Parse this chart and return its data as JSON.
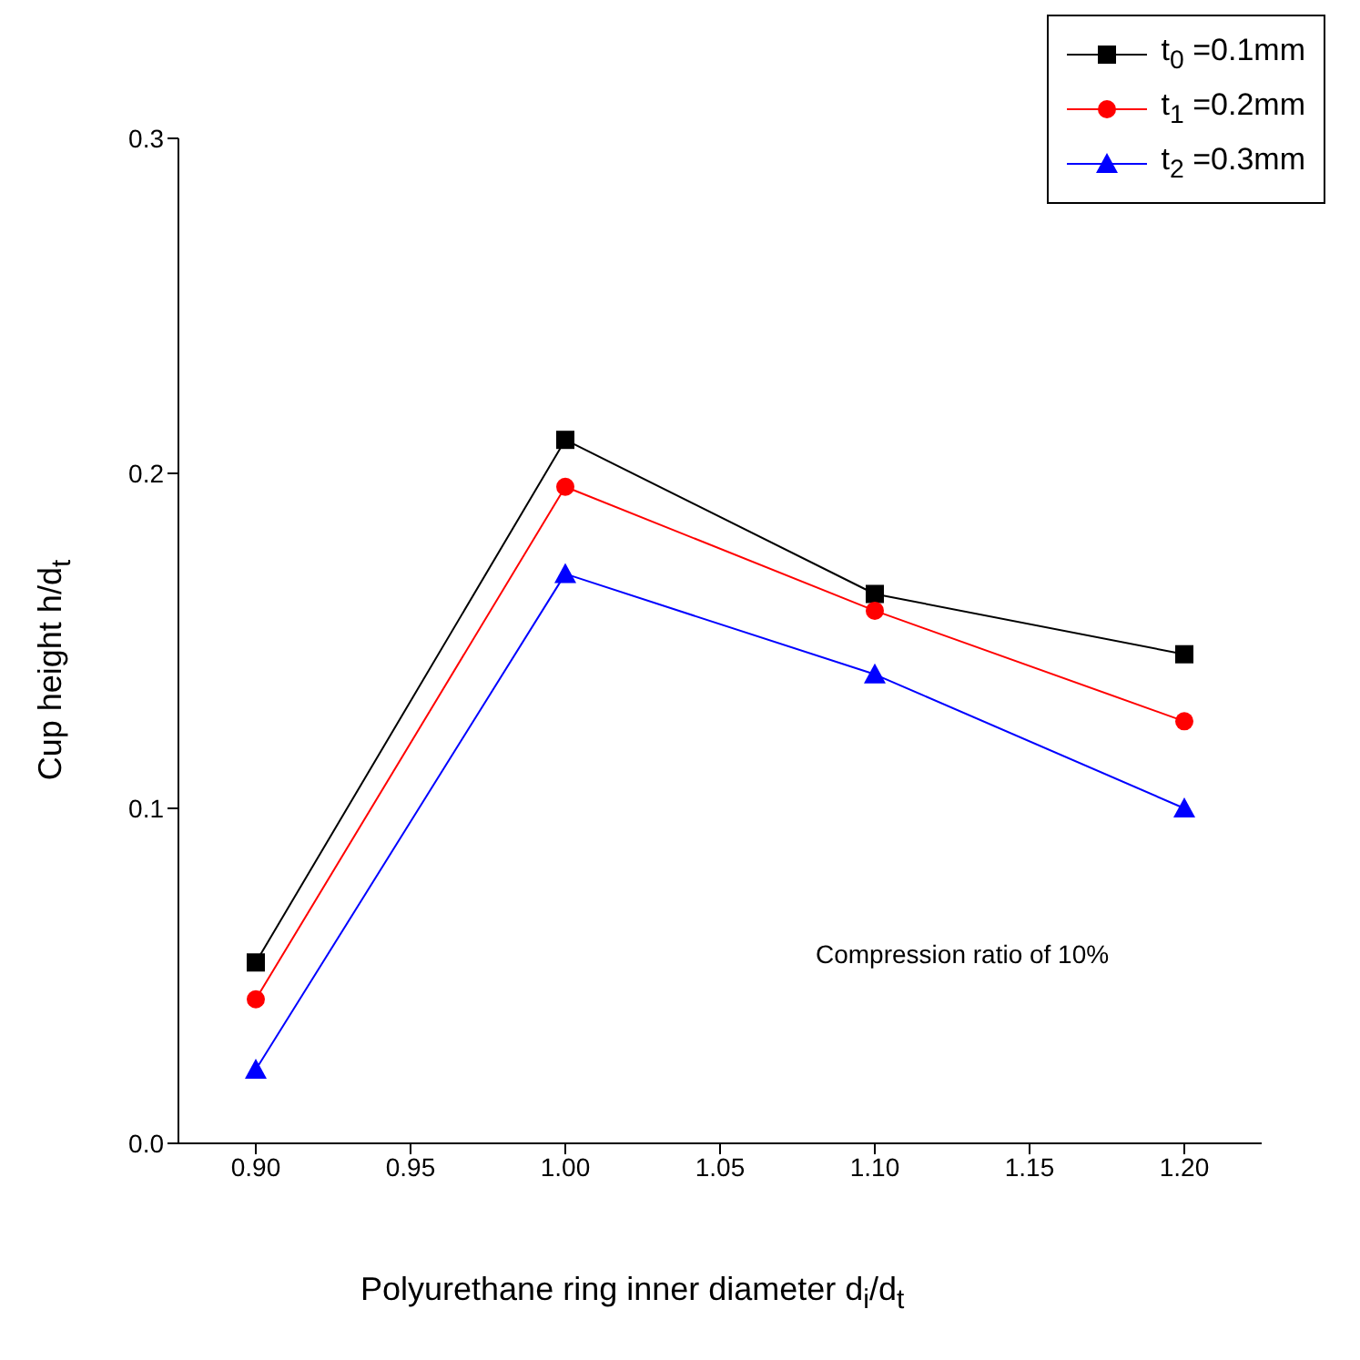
{
  "chart_data": {
    "type": "line",
    "xlabel": "Polyurethane ring inner diameter d$_{i}$/d$_{t}$",
    "ylabel": "Cup height h/d$_{t}$",
    "x": [
      0.9,
      1.0,
      1.1,
      1.2
    ],
    "xlim": [
      0.875,
      1.225
    ],
    "xticks": [
      {
        "value": 0.9,
        "label": "0.90"
      },
      {
        "value": 0.95,
        "label": "0.95"
      },
      {
        "value": 1.0,
        "label": "1.00"
      },
      {
        "value": 1.05,
        "label": "1.05"
      },
      {
        "value": 1.1,
        "label": "1.10"
      },
      {
        "value": 1.15,
        "label": "1.15"
      },
      {
        "value": 1.2,
        "label": "1.20"
      }
    ],
    "ylim": [
      0,
      0.3
    ],
    "yticks": [
      {
        "value": 0,
        "label": "0.0"
      },
      0.1,
      0.2,
      0.3
    ],
    "grid": false,
    "legend": "top right",
    "line_style": "solid",
    "annotations": [
      "Compression ratio of 10%"
    ],
    "series": [
      {
        "name": "t$_{0}$ =0.1mm",
        "color": "#000000",
        "marker": "square",
        "values": [
          0.054,
          0.21,
          0.164,
          0.146
        ]
      },
      {
        "name": "t$_{1}$ =0.2mm",
        "color": "#ff0000",
        "marker": "circle",
        "values": [
          0.043,
          0.196,
          0.159,
          0.126
        ]
      },
      {
        "name": "t$_{2}$ =0.3mm",
        "color": "#0000ff",
        "marker": "triangle",
        "values": [
          0.022,
          0.17,
          0.14,
          0.1
        ]
      }
    ]
  }
}
